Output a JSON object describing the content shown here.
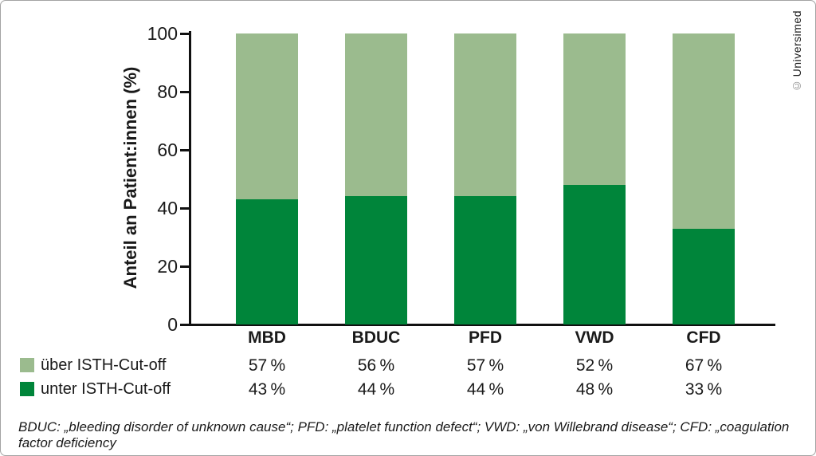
{
  "chart_data": {
    "type": "bar",
    "subtype": "stacked-percentage",
    "categories": [
      "MBD",
      "BDUC",
      "PFD",
      "VWD",
      "CFD"
    ],
    "series": [
      {
        "name": "über ISTH-Cut-off",
        "color": "#9bbb8e",
        "values": [
          57,
          56,
          57,
          52,
          67
        ]
      },
      {
        "name": "unter ISTH-Cut-off",
        "color": "#00853a",
        "values": [
          43,
          44,
          44,
          48,
          33
        ]
      }
    ],
    "title": "",
    "xlabel": "",
    "ylabel": "Anteil an Patient:innen (%)",
    "yticks": [
      0,
      20,
      40,
      60,
      80,
      100
    ],
    "ylim": [
      0,
      100
    ],
    "grid": false,
    "legend_position": "bottom-left",
    "value_suffix": " %"
  },
  "colors": {
    "axis": "#111111",
    "text": "#1a1a1a",
    "frame": "#a3a3a3"
  },
  "footnote": "BDUC: „bleeding disorder of unknown cause“; PFD: „platelet function defect“; VWD: „von Willebrand disease“; CFD: „coagulation factor deficiency",
  "copyright": {
    "symbol": "©",
    "text": "Universimed"
  }
}
